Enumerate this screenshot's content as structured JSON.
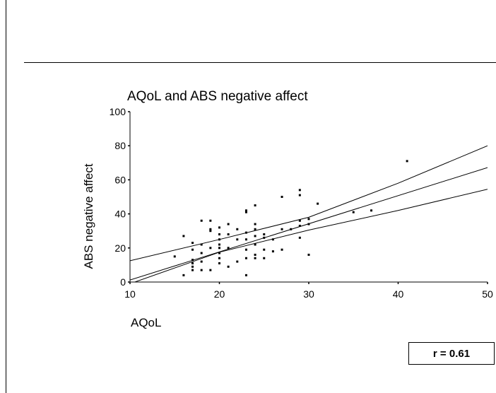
{
  "chart_data": {
    "type": "scatter",
    "title": "AQoL and ABS negative affect",
    "xlabel": "AQoL",
    "ylabel": "ABS negative affect",
    "xlim": [
      10,
      50
    ],
    "ylim": [
      0,
      100
    ],
    "xticks": [
      "10",
      "20",
      "30",
      "40",
      "50"
    ],
    "yticks": [
      "0",
      "20",
      "40",
      "60",
      "80",
      "100"
    ],
    "grid": false,
    "points": [
      [
        15,
        15
      ],
      [
        16,
        27
      ],
      [
        16,
        4
      ],
      [
        17,
        23
      ],
      [
        17,
        19
      ],
      [
        17,
        13
      ],
      [
        17,
        11
      ],
      [
        17,
        9
      ],
      [
        17,
        7
      ],
      [
        18,
        36
      ],
      [
        18,
        22
      ],
      [
        18,
        17
      ],
      [
        18,
        12
      ],
      [
        18,
        7
      ],
      [
        19,
        36
      ],
      [
        19,
        31
      ],
      [
        19,
        30
      ],
      [
        19,
        20
      ],
      [
        19,
        7
      ],
      [
        20,
        32
      ],
      [
        20,
        28
      ],
      [
        20,
        25
      ],
      [
        20,
        22
      ],
      [
        20,
        20
      ],
      [
        20,
        17
      ],
      [
        20,
        14
      ],
      [
        20,
        11
      ],
      [
        21,
        34
      ],
      [
        21,
        28
      ],
      [
        21,
        20
      ],
      [
        21,
        9
      ],
      [
        22,
        31
      ],
      [
        22,
        25
      ],
      [
        22,
        12
      ],
      [
        23,
        42
      ],
      [
        23,
        41
      ],
      [
        23,
        29
      ],
      [
        23,
        25
      ],
      [
        23,
        19
      ],
      [
        23,
        14
      ],
      [
        23,
        4
      ],
      [
        24,
        45
      ],
      [
        24,
        34
      ],
      [
        24,
        31
      ],
      [
        24,
        27
      ],
      [
        24,
        22
      ],
      [
        24,
        16
      ],
      [
        24,
        14
      ],
      [
        25,
        28
      ],
      [
        25,
        26
      ],
      [
        25,
        19
      ],
      [
        25,
        14
      ],
      [
        26,
        25
      ],
      [
        26,
        18
      ],
      [
        27,
        50
      ],
      [
        27,
        31
      ],
      [
        27,
        19
      ],
      [
        28,
        31
      ],
      [
        29,
        54
      ],
      [
        29,
        51
      ],
      [
        29,
        36
      ],
      [
        29,
        33
      ],
      [
        29,
        26
      ],
      [
        30,
        37
      ],
      [
        30,
        34
      ],
      [
        30,
        16
      ],
      [
        31,
        46
      ],
      [
        35,
        41
      ],
      [
        37,
        42
      ],
      [
        41,
        71
      ]
    ],
    "fit_line": {
      "intercept": -15.3,
      "slope": 1.65
    },
    "ci_upper": [
      [
        10,
        12.5
      ],
      [
        20,
        25
      ],
      [
        30,
        38
      ],
      [
        40,
        58
      ],
      [
        50,
        80
      ]
    ],
    "ci_lower": [
      [
        10,
        -1
      ],
      [
        20,
        17.5
      ],
      [
        30,
        30.5
      ],
      [
        40,
        42
      ],
      [
        50,
        54.5
      ]
    ]
  },
  "stat_label": "r = 0.61"
}
